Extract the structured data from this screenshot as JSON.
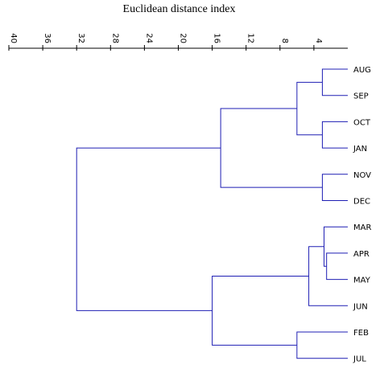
{
  "chart_data": {
    "type": "dendrogram",
    "title": "Euclidean distance index",
    "axis": {
      "ticks": [
        40,
        36,
        32,
        28,
        24,
        20,
        16,
        12,
        8,
        4
      ],
      "range": [
        0,
        40
      ],
      "reversed": true
    },
    "leaves": [
      "AUG",
      "SEP",
      "OCT",
      "JAN",
      "NOV",
      "DEC",
      "MAR",
      "APR",
      "MAY",
      "JUN",
      "FEB",
      "JUL"
    ],
    "merges": [
      {
        "id": "m1",
        "left": "APR",
        "right": "MAY",
        "height": 2.5
      },
      {
        "id": "m2",
        "left": "AUG",
        "right": "SEP",
        "height": 3
      },
      {
        "id": "m3",
        "left": "OCT",
        "right": "JAN",
        "height": 3
      },
      {
        "id": "m4",
        "left": "NOV",
        "right": "DEC",
        "height": 3
      },
      {
        "id": "m5",
        "left": "MAR",
        "right": "m1",
        "height": 2.8
      },
      {
        "id": "m6",
        "left": "FEB",
        "right": "JUL",
        "height": 6
      },
      {
        "id": "m7",
        "left": "m2",
        "right": "m3",
        "height": 6
      },
      {
        "id": "m8",
        "left": "m5",
        "right": "JUN",
        "height": 4.6
      },
      {
        "id": "m9",
        "left": "m7",
        "right": "m4",
        "height": 15
      },
      {
        "id": "m10",
        "left": "m8",
        "right": "m6",
        "height": 16
      },
      {
        "id": "m11",
        "left": "m9",
        "right": "m10",
        "height": 32
      }
    ],
    "line_color": "#1f1fb4"
  }
}
